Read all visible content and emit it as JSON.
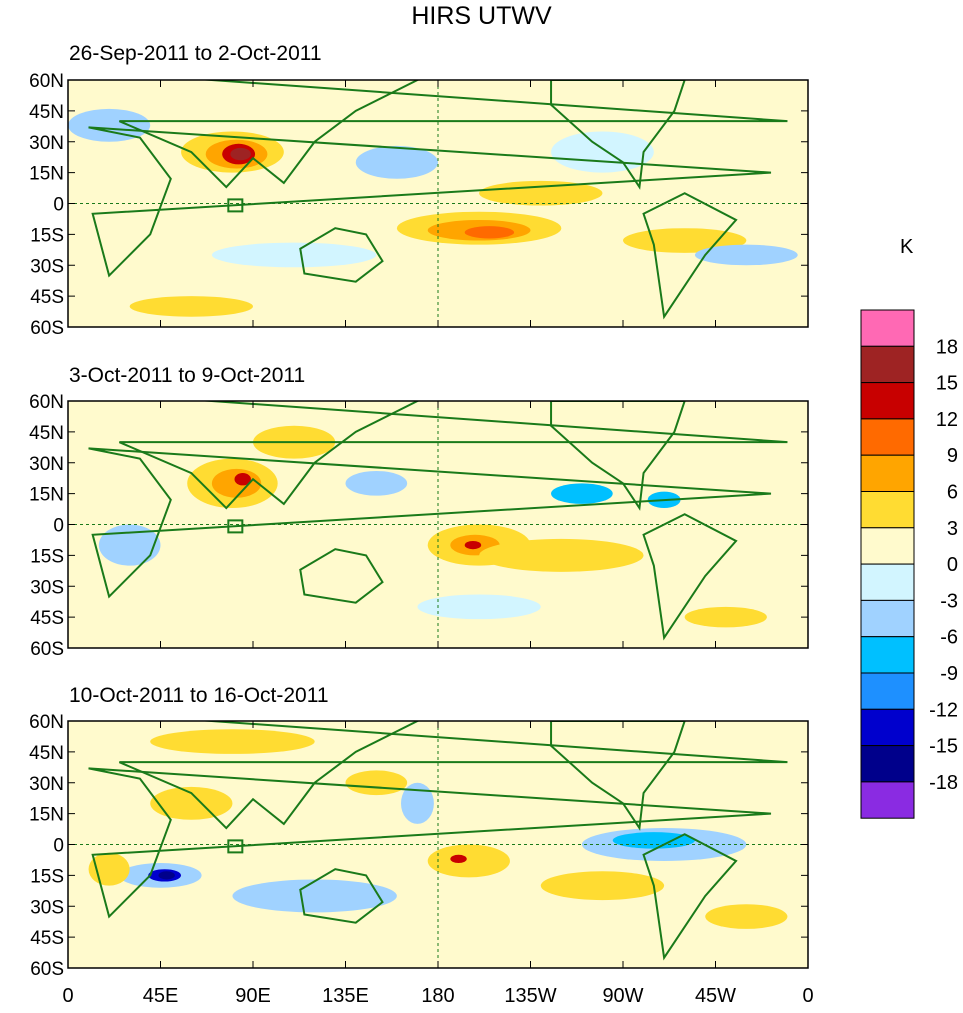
{
  "title": "HIRS UTWV",
  "panels": [
    {
      "label": "26-Sep-2011 to 2-Oct-2011"
    },
    {
      "label": "3-Oct-2011 to 9-Oct-2011"
    },
    {
      "label": "10-Oct-2011 to 16-Oct-2011"
    }
  ],
  "y_ticks": [
    "60N",
    "45N",
    "30N",
    "15N",
    "0",
    "15S",
    "30S",
    "45S",
    "60S"
  ],
  "x_ticks": [
    "0",
    "45E",
    "90E",
    "135E",
    "180",
    "135W",
    "90W",
    "45W",
    "0"
  ],
  "colorbar": {
    "unit": "K",
    "labels": [
      "18",
      "15",
      "12",
      "9",
      "6",
      "3",
      "0",
      "-3",
      "-6",
      "-9",
      "-12",
      "-15",
      "-18"
    ],
    "colors": [
      "#ff69b4",
      "#9e2323",
      "#c80000",
      "#ff6a00",
      "#ffa500",
      "#ffdc32",
      "#fffacd",
      "#d2f5ff",
      "#a0d2ff",
      "#00c0ff",
      "#1e90ff",
      "#0000cd",
      "#00008b",
      "#8a2be2"
    ]
  }
}
